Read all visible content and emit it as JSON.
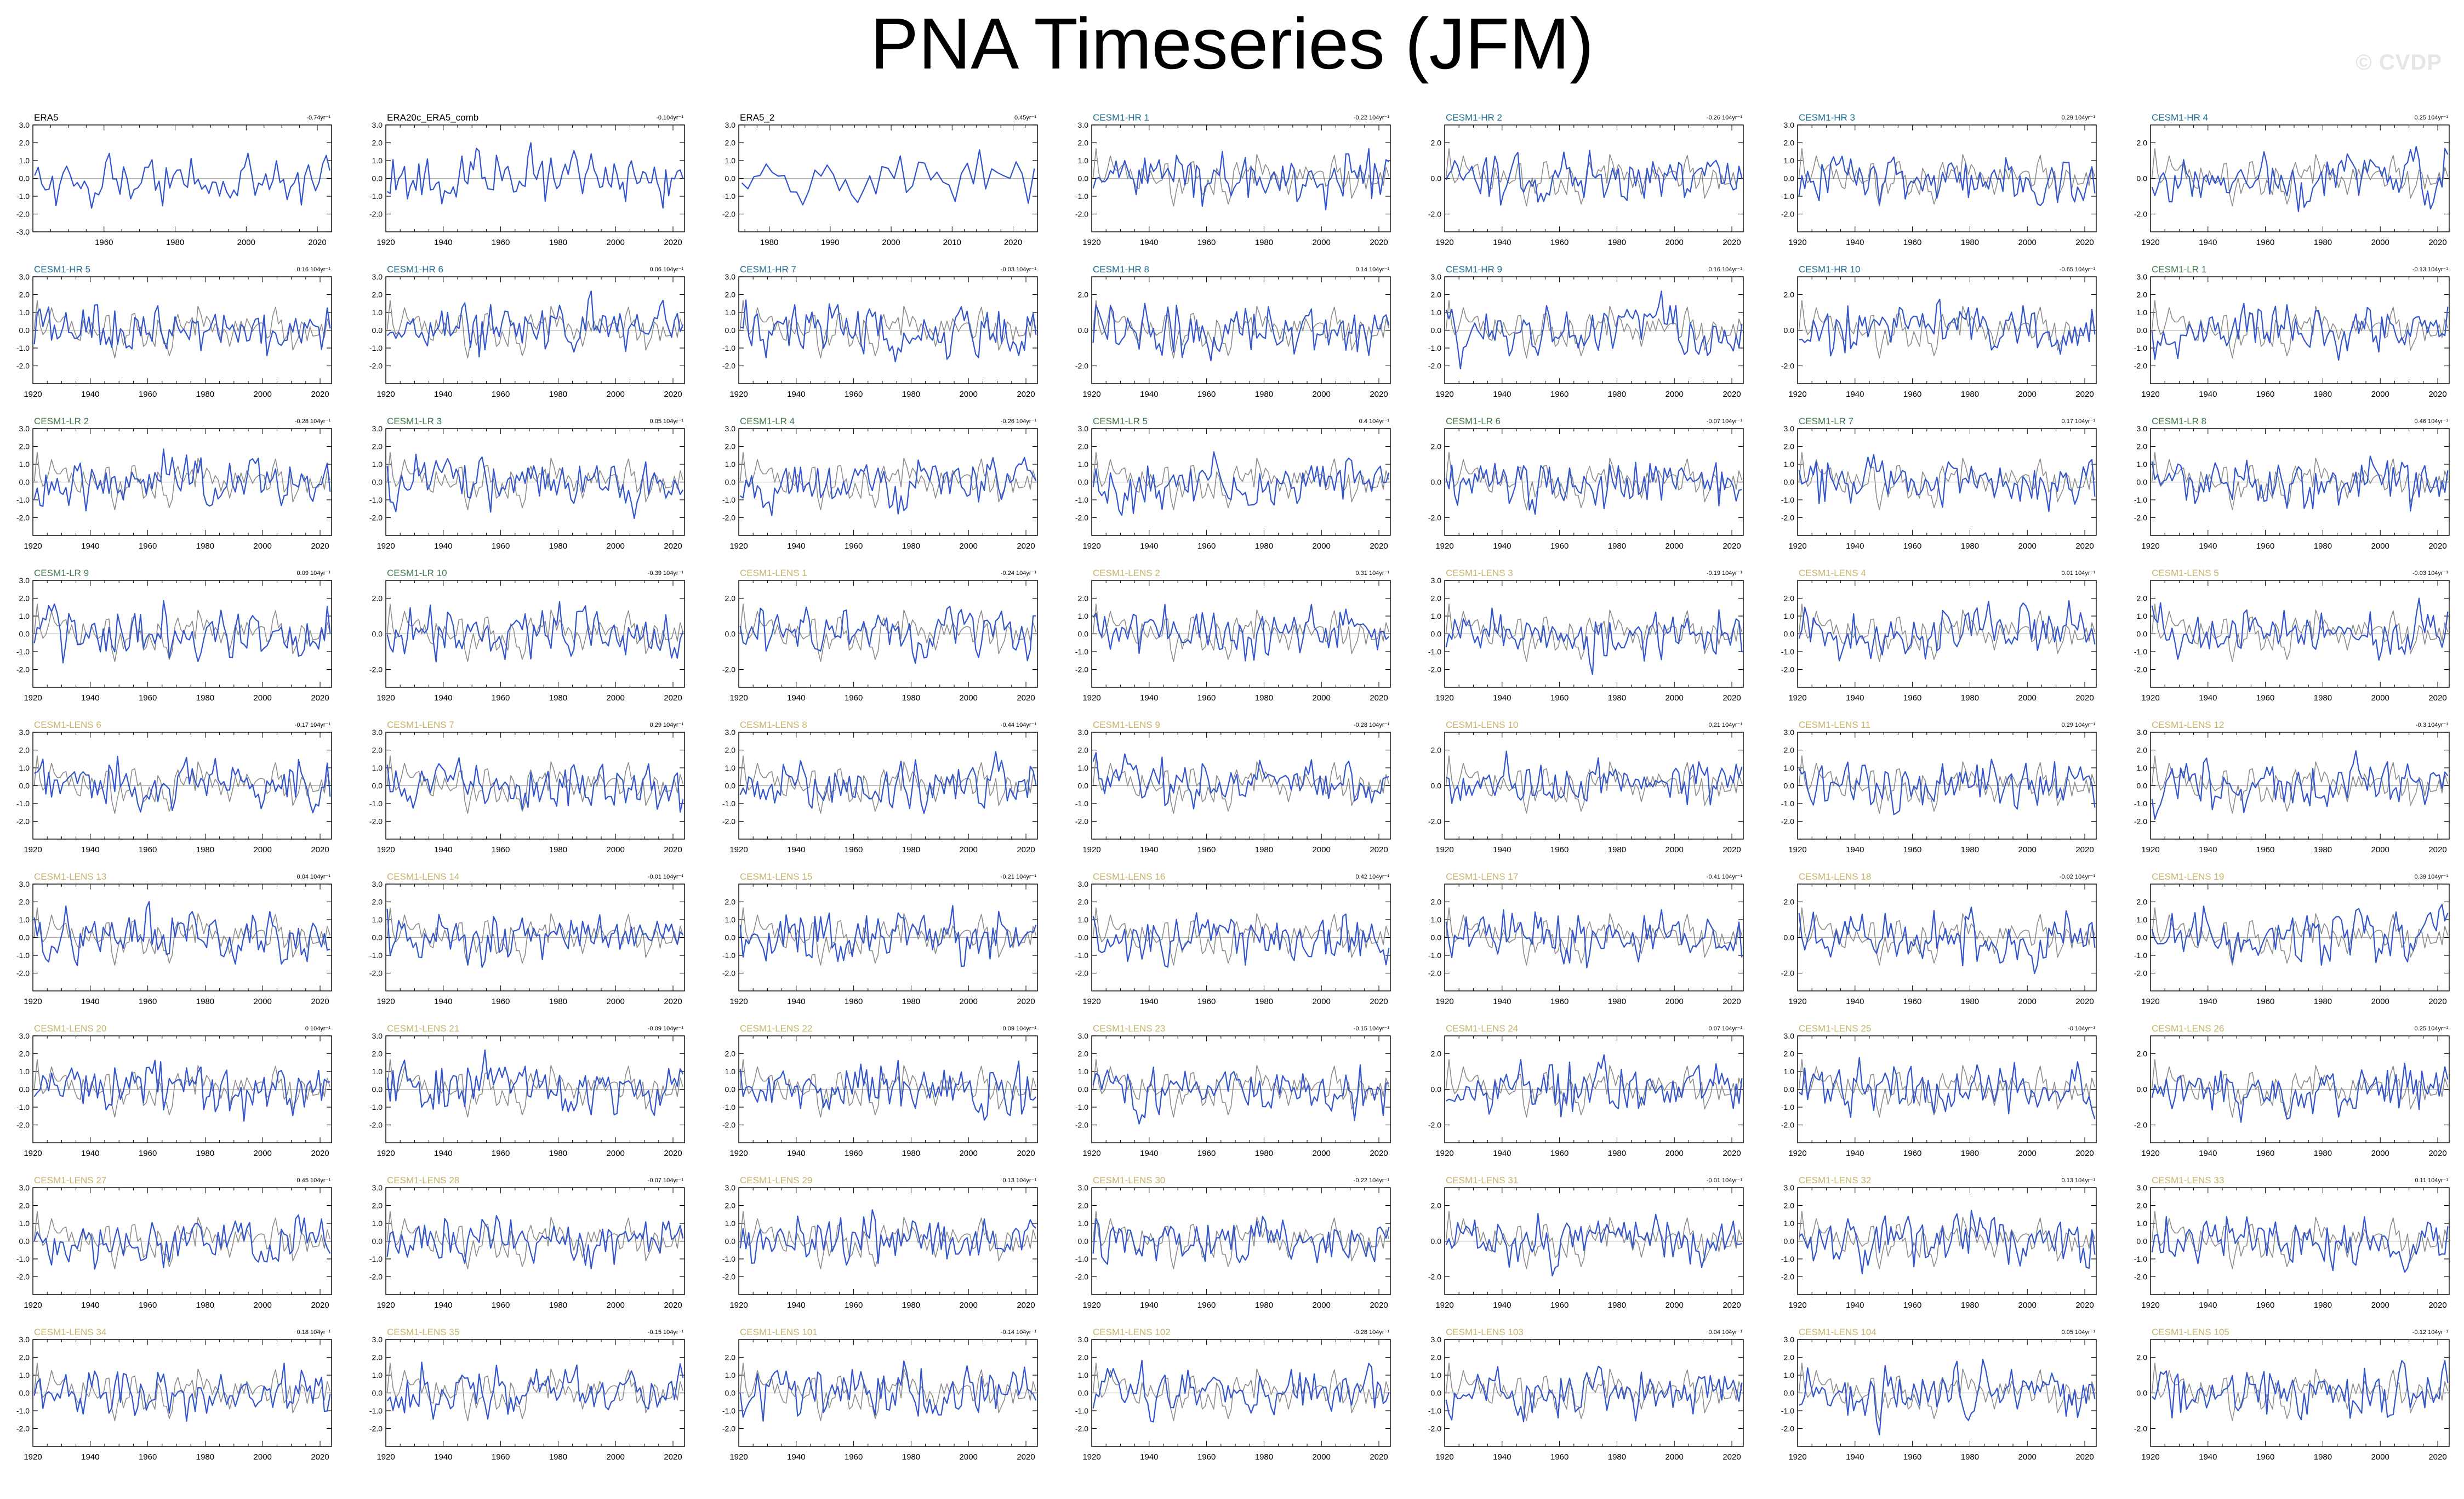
{
  "title": "PNA Timeseries (JFM)",
  "watermark": "© CVDP",
  "colors": {
    "member_line": "#3355cc",
    "obs_line": "#8c8c8c",
    "zero_line": "#b0b0b0",
    "axis": "#000000",
    "label_obs": "#000000",
    "label_hr": "#1f6e94",
    "label_lr": "#3d7a4c",
    "label_lens": "#c7b46a"
  },
  "chart_data": {
    "type": "line",
    "layout": "grid-9x7",
    "panels": [
      {
        "name": "ERA5",
        "trend": "-0.74yr⁻¹",
        "group": "obs",
        "xlim": [
          1940,
          2024
        ],
        "xticks": [
          1960,
          1980,
          2000,
          2020
        ],
        "ylim": [
          -3,
          3
        ],
        "yticks": [
          "3.0",
          "2.0",
          "1.0",
          "0.0",
          "-1.0",
          "-2.0",
          "-3.0"
        ]
      },
      {
        "name": "ERA20c_ERA5_comb",
        "trend": "-0.104yr⁻¹",
        "group": "obs",
        "xlim": [
          1920,
          2024
        ],
        "xticks": [
          1920,
          1940,
          1960,
          1980,
          2000,
          2020
        ],
        "ylim": [
          -3,
          3
        ],
        "yticks": [
          "3.0",
          "2.0",
          "1.0",
          "0.0",
          "-1.0",
          "-2.0"
        ]
      },
      {
        "name": "ERA5_2",
        "trend": "0.45yr⁻¹",
        "group": "obs",
        "xlim": [
          1975,
          2024
        ],
        "xticks": [
          1980,
          1990,
          2000,
          2010,
          2020
        ],
        "ylim": [
          -3,
          3
        ],
        "yticks": [
          "3.0",
          "2.0",
          "1.0",
          "0.0",
          "-1.0",
          "-2.0"
        ]
      },
      {
        "name": "CESM1-HR 1",
        "trend": "-0.22 104yr⁻¹",
        "group": "hr",
        "yticks": [
          "3.0",
          "2.0",
          "1.0",
          "0.0",
          "-1.0",
          "-2.0"
        ]
      },
      {
        "name": "CESM1-HR 2",
        "trend": "-0.26 104yr⁻¹",
        "group": "hr",
        "yticks": [
          "2.0",
          "0.0",
          "-2.0"
        ]
      },
      {
        "name": "CESM1-HR 3",
        "trend": "0.29 104yr⁻¹",
        "group": "hr",
        "yticks": [
          "3.0",
          "2.0",
          "1.0",
          "0.0",
          "-1.0",
          "-2.0"
        ]
      },
      {
        "name": "CESM1-HR 4",
        "trend": "0.25 104yr⁻¹",
        "group": "hr",
        "yticks": [
          "2.0",
          "0.0",
          "-2.0"
        ]
      },
      {
        "name": "CESM1-HR 5",
        "trend": "0.16 104yr⁻¹",
        "group": "hr",
        "yticks": [
          "3.0",
          "2.0",
          "1.0",
          "0.0",
          "-1.0",
          "-2.0"
        ]
      },
      {
        "name": "CESM1-HR 6",
        "trend": "0.06 104yr⁻¹",
        "group": "hr",
        "yticks": [
          "3.0",
          "2.0",
          "1.0",
          "0.0",
          "-1.0",
          "-2.0"
        ]
      },
      {
        "name": "CESM1-HR 7",
        "trend": "-0.03 104yr⁻¹",
        "group": "hr",
        "yticks": [
          "3.0",
          "2.0",
          "1.0",
          "0.0",
          "-1.0",
          "-2.0"
        ]
      },
      {
        "name": "CESM1-HR 8",
        "trend": "0.14 104yr⁻¹",
        "group": "hr",
        "yticks": [
          "2.0",
          "0.0",
          "-2.0"
        ]
      },
      {
        "name": "CESM1-HR 9",
        "trend": "0.16 104yr⁻¹",
        "group": "hr",
        "yticks": [
          "3.0",
          "2.0",
          "1.0",
          "0.0",
          "-1.0",
          "-2.0"
        ]
      },
      {
        "name": "CESM1-HR 10",
        "trend": "-0.65 104yr⁻¹",
        "group": "hr",
        "yticks": [
          "2.0",
          "0.0",
          "-2.0"
        ]
      },
      {
        "name": "CESM1-LR 1",
        "trend": "-0.13 104yr⁻¹",
        "group": "lr",
        "yticks": [
          "3.0",
          "2.0",
          "1.0",
          "0.0",
          "-1.0",
          "-2.0"
        ]
      },
      {
        "name": "CESM1-LR 2",
        "trend": "-0.28 104yr⁻¹",
        "group": "lr",
        "yticks": [
          "3.0",
          "2.0",
          "1.0",
          "0.0",
          "-1.0",
          "-2.0"
        ]
      },
      {
        "name": "CESM1-LR 3",
        "trend": "0.05 104yr⁻¹",
        "group": "lr",
        "yticks": [
          "3.0",
          "2.0",
          "1.0",
          "0.0",
          "-1.0",
          "-2.0"
        ]
      },
      {
        "name": "CESM1-LR 4",
        "trend": "-0.26 104yr⁻¹",
        "group": "lr",
        "yticks": [
          "3.0",
          "2.0",
          "1.0",
          "0.0",
          "-1.0",
          "-2.0"
        ]
      },
      {
        "name": "CESM1-LR 5",
        "trend": "0.4 104yr⁻¹",
        "group": "lr",
        "yticks": [
          "3.0",
          "2.0",
          "1.0",
          "0.0",
          "-1.0",
          "-2.0"
        ]
      },
      {
        "name": "CESM1-LR 6",
        "trend": "-0.07 104yr⁻¹",
        "group": "lr",
        "yticks": [
          "2.0",
          "0.0",
          "-2.0"
        ]
      },
      {
        "name": "CESM1-LR 7",
        "trend": "0.17 104yr⁻¹",
        "group": "lr",
        "yticks": [
          "3.0",
          "2.0",
          "1.0",
          "0.0",
          "-1.0",
          "-2.0"
        ]
      },
      {
        "name": "CESM1-LR 8",
        "trend": "0.46 104yr⁻¹",
        "group": "lr",
        "yticks": [
          "3.0",
          "2.0",
          "1.0",
          "0.0",
          "-1.0",
          "-2.0"
        ]
      },
      {
        "name": "CESM1-LR 9",
        "trend": "0.09 104yr⁻¹",
        "group": "lr",
        "yticks": [
          "3.0",
          "2.0",
          "1.0",
          "0.0",
          "-1.0",
          "-2.0"
        ]
      },
      {
        "name": "CESM1-LR 10",
        "trend": "-0.39 104yr⁻¹",
        "group": "lr",
        "yticks": [
          "2.0",
          "0.0",
          "-2.0"
        ]
      },
      {
        "name": "CESM1-LENS 1",
        "trend": "-0.24 104yr⁻¹",
        "group": "lens",
        "yticks": [
          "2.0",
          "0.0",
          "-2.0"
        ]
      },
      {
        "name": "CESM1-LENS 2",
        "trend": "0.31 104yr⁻¹",
        "group": "lens",
        "yticks": [
          "2.0",
          "1.0",
          "0.0",
          "-1.0",
          "-2.0"
        ]
      },
      {
        "name": "CESM1-LENS 3",
        "trend": "-0.19 104yr⁻¹",
        "group": "lens",
        "yticks": [
          "3.0",
          "2.0",
          "1.0",
          "0.0",
          "-1.0",
          "-2.0"
        ]
      },
      {
        "name": "CESM1-LENS 4",
        "trend": "0.01 104yr⁻¹",
        "group": "lens",
        "yticks": [
          "2.0",
          "1.0",
          "0.0",
          "-1.0",
          "-2.0"
        ]
      },
      {
        "name": "CESM1-LENS 5",
        "trend": "-0.03 104yr⁻¹",
        "group": "lens",
        "yticks": [
          "2.0",
          "1.0",
          "0.0",
          "-1.0",
          "-2.0"
        ]
      },
      {
        "name": "CESM1-LENS 6",
        "trend": "-0.17 104yr⁻¹",
        "group": "lens",
        "yticks": [
          "3.0",
          "2.0",
          "1.0",
          "0.0",
          "-1.0",
          "-2.0"
        ]
      },
      {
        "name": "CESM1-LENS 7",
        "trend": "0.29 104yr⁻¹",
        "group": "lens",
        "yticks": [
          "3.0",
          "2.0",
          "1.0",
          "0.0",
          "-1.0",
          "-2.0"
        ]
      },
      {
        "name": "CESM1-LENS 8",
        "trend": "-0.44 104yr⁻¹",
        "group": "lens",
        "yticks": [
          "3.0",
          "2.0",
          "1.0",
          "0.0",
          "-1.0",
          "-2.0"
        ]
      },
      {
        "name": "CESM1-LENS 9",
        "trend": "-0.28 104yr⁻¹",
        "group": "lens",
        "yticks": [
          "3.0",
          "2.0",
          "1.0",
          "0.0",
          "-1.0",
          "-2.0"
        ]
      },
      {
        "name": "CESM1-LENS 10",
        "trend": "0.21 104yr⁻¹",
        "group": "lens",
        "yticks": [
          "2.0",
          "0.0",
          "-2.0"
        ]
      },
      {
        "name": "CESM1-LENS 11",
        "trend": "0.29 104yr⁻¹",
        "group": "lens",
        "yticks": [
          "3.0",
          "2.0",
          "1.0",
          "0.0",
          "-1.0",
          "-2.0"
        ]
      },
      {
        "name": "CESM1-LENS 12",
        "trend": "-0.3 104yr⁻¹",
        "group": "lens",
        "yticks": [
          "3.0",
          "2.0",
          "1.0",
          "0.0",
          "-1.0",
          "-2.0"
        ]
      },
      {
        "name": "CESM1-LENS 13",
        "trend": "0.04 104yr⁻¹",
        "group": "lens",
        "yticks": [
          "3.0",
          "2.0",
          "1.0",
          "0.0",
          "-1.0",
          "-2.0"
        ]
      },
      {
        "name": "CESM1-LENS 14",
        "trend": "-0.01 104yr⁻¹",
        "group": "lens",
        "yticks": [
          "3.0",
          "2.0",
          "1.0",
          "0.0",
          "-1.0",
          "-2.0"
        ]
      },
      {
        "name": "CESM1-LENS 15",
        "trend": "-0.21 104yr⁻¹",
        "group": "lens",
        "yticks": [
          "2.0",
          "1.0",
          "0.0",
          "-1.0",
          "-2.0"
        ]
      },
      {
        "name": "CESM1-LENS 16",
        "trend": "0.42 104yr⁻¹",
        "group": "lens",
        "yticks": [
          "3.0",
          "2.0",
          "1.0",
          "0.0",
          "-1.0",
          "-2.0"
        ]
      },
      {
        "name": "CESM1-LENS 17",
        "trend": "-0.41 104yr⁻¹",
        "group": "lens",
        "yticks": [
          "2.0",
          "1.0",
          "0.0",
          "-1.0",
          "-2.0"
        ]
      },
      {
        "name": "CESM1-LENS 18",
        "trend": "-0.02 104yr⁻¹",
        "group": "lens",
        "yticks": [
          "2.0",
          "0.0",
          "-2.0"
        ]
      },
      {
        "name": "CESM1-LENS 19",
        "trend": "0.39 104yr⁻¹",
        "group": "lens",
        "yticks": [
          "2.0",
          "1.0",
          "0.0",
          "-1.0",
          "-2.0"
        ]
      },
      {
        "name": "CESM1-LENS 20",
        "trend": "0 104yr⁻¹",
        "group": "lens",
        "yticks": [
          "3.0",
          "2.0",
          "1.0",
          "0.0",
          "-1.0",
          "-2.0"
        ]
      },
      {
        "name": "CESM1-LENS 21",
        "trend": "-0.09 104yr⁻¹",
        "group": "lens",
        "yticks": [
          "3.0",
          "2.0",
          "1.0",
          "0.0",
          "-1.0",
          "-2.0"
        ]
      },
      {
        "name": "CESM1-LENS 22",
        "trend": "0.09 104yr⁻¹",
        "group": "lens",
        "yticks": [
          "2.0",
          "1.0",
          "0.0",
          "-1.0",
          "-2.0"
        ]
      },
      {
        "name": "CESM1-LENS 23",
        "trend": "-0.15 104yr⁻¹",
        "group": "lens",
        "yticks": [
          "3.0",
          "2.0",
          "1.0",
          "0.0",
          "-1.0",
          "-2.0"
        ]
      },
      {
        "name": "CESM1-LENS 24",
        "trend": "0.07 104yr⁻¹",
        "group": "lens",
        "yticks": [
          "2.0",
          "0.0",
          "-2.0"
        ]
      },
      {
        "name": "CESM1-LENS 25",
        "trend": "-0 104yr⁻¹",
        "group": "lens",
        "yticks": [
          "3.0",
          "2.0",
          "1.0",
          "0.0",
          "-1.0",
          "-2.0"
        ]
      },
      {
        "name": "CESM1-LENS 26",
        "trend": "0.25 104yr⁻¹",
        "group": "lens",
        "yticks": [
          "2.0",
          "0.0",
          "-2.0"
        ]
      },
      {
        "name": "CESM1-LENS 27",
        "trend": "0.45 104yr⁻¹",
        "group": "lens",
        "yticks": [
          "3.0",
          "2.0",
          "1.0",
          "0.0",
          "-1.0",
          "-2.0"
        ]
      },
      {
        "name": "CESM1-LENS 28",
        "trend": "-0.07 104yr⁻¹",
        "group": "lens",
        "yticks": [
          "3.0",
          "2.0",
          "1.0",
          "0.0",
          "-1.0",
          "-2.0"
        ]
      },
      {
        "name": "CESM1-LENS 29",
        "trend": "0.13 104yr⁻¹",
        "group": "lens",
        "yticks": [
          "3.0",
          "2.0",
          "1.0",
          "0.0",
          "-1.0",
          "-2.0"
        ]
      },
      {
        "name": "CESM1-LENS 30",
        "trend": "-0.22 104yr⁻¹",
        "group": "lens",
        "yticks": [
          "3.0",
          "2.0",
          "1.0",
          "0.0",
          "-1.0",
          "-2.0"
        ]
      },
      {
        "name": "CESM1-LENS 31",
        "trend": "-0.01 104yr⁻¹",
        "group": "lens",
        "yticks": [
          "2.0",
          "0.0",
          "-2.0"
        ]
      },
      {
        "name": "CESM1-LENS 32",
        "trend": "0.13 104yr⁻¹",
        "group": "lens",
        "yticks": [
          "3.0",
          "2.0",
          "1.0",
          "0.0",
          "-1.0",
          "-2.0"
        ]
      },
      {
        "name": "CESM1-LENS 33",
        "trend": "0.11 104yr⁻¹",
        "group": "lens",
        "yticks": [
          "3.0",
          "2.0",
          "1.0",
          "0.0",
          "-1.0",
          "-2.0"
        ]
      },
      {
        "name": "CESM1-LENS 34",
        "trend": "0.18 104yr⁻¹",
        "group": "lens",
        "yticks": [
          "3.0",
          "2.0",
          "1.0",
          "0.0",
          "-1.0",
          "-2.0"
        ]
      },
      {
        "name": "CESM1-LENS 35",
        "trend": "-0.15 104yr⁻¹",
        "group": "lens",
        "yticks": [
          "3.0",
          "2.0",
          "1.0",
          "0.0",
          "-1.0",
          "-2.0"
        ]
      },
      {
        "name": "CESM1-LENS 101",
        "trend": "-0.14 104yr⁻¹",
        "group": "lens",
        "yticks": [
          "2.0",
          "1.0",
          "0.0",
          "-1.0",
          "-2.0"
        ]
      },
      {
        "name": "CESM1-LENS 102",
        "trend": "-0.28 104yr⁻¹",
        "group": "lens",
        "yticks": [
          "3.0",
          "2.0",
          "1.0",
          "0.0",
          "-1.0",
          "-2.0"
        ]
      },
      {
        "name": "CESM1-LENS 103",
        "trend": "0.04 104yr⁻¹",
        "group": "lens",
        "yticks": [
          "3.0",
          "2.0",
          "1.0",
          "0.0",
          "-1.0",
          "-2.0"
        ]
      },
      {
        "name": "CESM1-LENS 104",
        "trend": "0.05 104yr⁻¹",
        "group": "lens",
        "yticks": [
          "3.0",
          "2.0",
          "1.0",
          "0.0",
          "-1.0",
          "-2.0"
        ]
      },
      {
        "name": "CESM1-LENS 105",
        "trend": "-0.12 104yr⁻¹",
        "group": "lens",
        "yticks": [
          "2.0",
          "0.0",
          "-2.0"
        ]
      }
    ],
    "default_xlim": [
      1920,
      2024
    ],
    "default_xticks": [
      1920,
      1940,
      1960,
      1980,
      2000,
      2020
    ],
    "default_ylim": [
      -3,
      3
    ]
  }
}
